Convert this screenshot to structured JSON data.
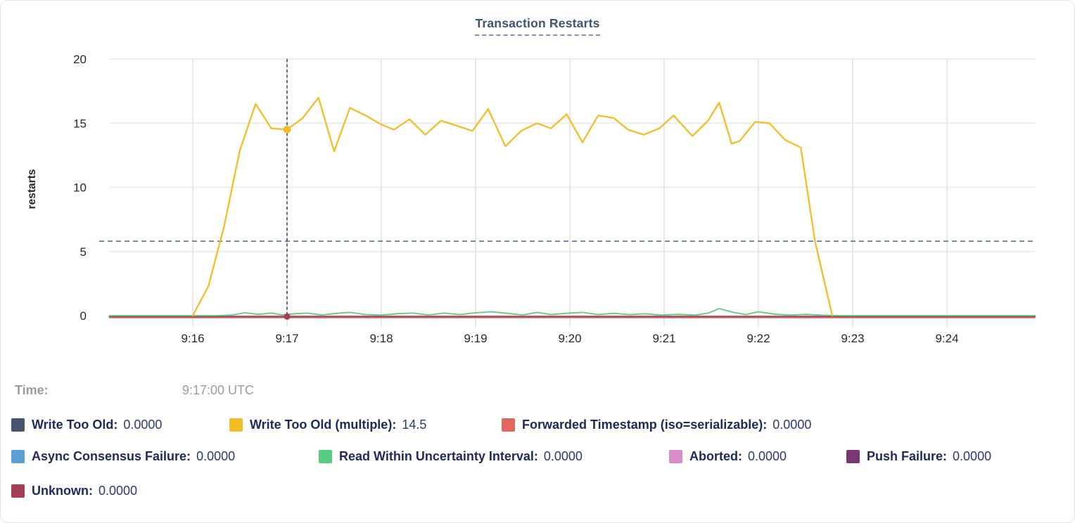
{
  "card": {
    "title": "Transaction Restarts"
  },
  "tooltip": {
    "time_label": "Time:",
    "time_value": "9:17:00 UTC"
  },
  "legend": {
    "items": [
      {
        "label": "Write Too Old:",
        "value": "0.0000",
        "color": "#47566E"
      },
      {
        "label": "Write Too Old (multiple):",
        "value": "14.5",
        "color": "#F2BD27"
      },
      {
        "label": "Forwarded Timestamp (iso=serializable):",
        "value": "0.0000",
        "color": "#E0695E"
      },
      {
        "label": "Async Consensus Failure:",
        "value": "0.0000",
        "color": "#5C9FD6"
      },
      {
        "label": "Read Within Uncertainty Interval:",
        "value": "0.0000",
        "color": "#55CE83"
      },
      {
        "label": "Aborted:",
        "value": "0.0000",
        "color": "#D98CC8"
      },
      {
        "label": "Push Failure:",
        "value": "0.0000",
        "color": "#7A3873"
      },
      {
        "label": "Unknown:",
        "value": "0.0000",
        "color": "#A43E55"
      }
    ]
  },
  "chart_data": {
    "type": "line",
    "title": "Transaction Restarts",
    "ylabel": "restarts",
    "ylim": [
      0,
      20
    ],
    "yticks": [
      0,
      5,
      10,
      15,
      20
    ],
    "xticks": [
      "9:16",
      "9:17",
      "9:18",
      "9:19",
      "9:20",
      "9:21",
      "9:22",
      "9:23",
      "9:24"
    ],
    "x_unit": "seconds since 9:16:00",
    "x_range": [
      -53,
      536
    ],
    "grid": true,
    "legend_position": "bottom",
    "dashed_reference_value": 5.8,
    "hover": {
      "t": 60,
      "x_label": "9:17",
      "time_utc": "9:17:00 UTC",
      "points": [
        {
          "series": "Write Too Old (multiple)",
          "value": 14.5
        },
        {
          "series": "Unknown",
          "value": 0
        }
      ]
    },
    "series": [
      {
        "name": "Write Too Old",
        "color": "#47566E",
        "points": [
          [
            -53,
            0
          ],
          [
            536,
            0
          ]
        ]
      },
      {
        "name": "Write Too Old (multiple)",
        "color": "#F2BD27",
        "points": [
          [
            0,
            0
          ],
          [
            10,
            2.3
          ],
          [
            20,
            7
          ],
          [
            30,
            12.9
          ],
          [
            40,
            16.5
          ],
          [
            50,
            14.6
          ],
          [
            60,
            14.5
          ],
          [
            70,
            15.4
          ],
          [
            80,
            17
          ],
          [
            90,
            12.8
          ],
          [
            100,
            16.2
          ],
          [
            110,
            15.6
          ],
          [
            120,
            14.9
          ],
          [
            128,
            14.5
          ],
          [
            138,
            15.3
          ],
          [
            148,
            14.1
          ],
          [
            158,
            15.2
          ],
          [
            168,
            14.8
          ],
          [
            178,
            14.4
          ],
          [
            188,
            16.1
          ],
          [
            199,
            13.2
          ],
          [
            209,
            14.4
          ],
          [
            219,
            15
          ],
          [
            228,
            14.6
          ],
          [
            238,
            15.7
          ],
          [
            248,
            13.5
          ],
          [
            258,
            15.6
          ],
          [
            268,
            15.4
          ],
          [
            277,
            14.5
          ],
          [
            287,
            14.1
          ],
          [
            297,
            14.6
          ],
          [
            306,
            15.6
          ],
          [
            318,
            14
          ],
          [
            328,
            15.2
          ],
          [
            335,
            16.6
          ],
          [
            343,
            13.4
          ],
          [
            348,
            13.6
          ],
          [
            358,
            15.1
          ],
          [
            367,
            15
          ],
          [
            377,
            13.7
          ],
          [
            387,
            13.1
          ],
          [
            396,
            5.8
          ],
          [
            407,
            0
          ]
        ]
      },
      {
        "name": "Forwarded Timestamp (iso=serializable)",
        "color": "#E0695E",
        "points": [
          [
            -53,
            0
          ],
          [
            536,
            0
          ]
        ]
      },
      {
        "name": "Async Consensus Failure",
        "color": "#5C9FD6",
        "points": [
          [
            -53,
            0
          ],
          [
            536,
            0
          ]
        ]
      },
      {
        "name": "Read Within Uncertainty Interval",
        "color": "#55CE83",
        "points": [
          [
            -53,
            0
          ],
          [
            15,
            0
          ],
          [
            25,
            0.05
          ],
          [
            33,
            0.22
          ],
          [
            42,
            0.1
          ],
          [
            50,
            0.2
          ],
          [
            57,
            0.05
          ],
          [
            65,
            0.15
          ],
          [
            73,
            0.2
          ],
          [
            82,
            0.05
          ],
          [
            92,
            0.18
          ],
          [
            100,
            0.25
          ],
          [
            110,
            0.08
          ],
          [
            120,
            0.04
          ],
          [
            130,
            0.15
          ],
          [
            140,
            0.2
          ],
          [
            150,
            0.05
          ],
          [
            160,
            0.2
          ],
          [
            170,
            0.08
          ],
          [
            180,
            0.22
          ],
          [
            190,
            0.3
          ],
          [
            200,
            0.18
          ],
          [
            210,
            0.05
          ],
          [
            219,
            0.25
          ],
          [
            228,
            0.08
          ],
          [
            238,
            0.18
          ],
          [
            248,
            0.25
          ],
          [
            258,
            0.08
          ],
          [
            268,
            0.18
          ],
          [
            278,
            0.08
          ],
          [
            288,
            0.14
          ],
          [
            298,
            0.04
          ],
          [
            308,
            0.1
          ],
          [
            320,
            0.04
          ],
          [
            328,
            0.2
          ],
          [
            335,
            0.55
          ],
          [
            344,
            0.25
          ],
          [
            352,
            0.08
          ],
          [
            360,
            0.3
          ],
          [
            370,
            0.12
          ],
          [
            380,
            0.04
          ],
          [
            390,
            0.1
          ],
          [
            400,
            0.04
          ],
          [
            412,
            0
          ],
          [
            536,
            0
          ]
        ]
      },
      {
        "name": "Aborted",
        "color": "#D98CC8",
        "points": [
          [
            -53,
            0
          ],
          [
            536,
            0
          ]
        ]
      },
      {
        "name": "Push Failure",
        "color": "#7A3873",
        "points": [
          [
            -53,
            0
          ],
          [
            536,
            0
          ]
        ]
      },
      {
        "name": "Unknown",
        "color": "#A43E55",
        "points": [
          [
            -53,
            0
          ],
          [
            536,
            0
          ]
        ]
      }
    ]
  }
}
